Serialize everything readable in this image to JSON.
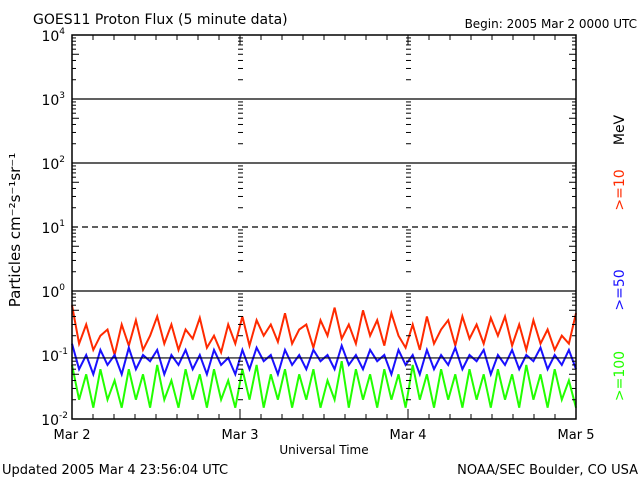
{
  "chart_data": {
    "type": "line",
    "title": "GOES11 Proton Flux (5 minute data)",
    "begin_label": "Begin: 2005 Mar 2 0000 UTC",
    "xlabel": "Universal Time",
    "ylabel": "Particles cm⁻²s⁻¹sr⁻¹",
    "yscale": "log",
    "ylim": [
      0.01,
      10000
    ],
    "y_ticks": [
      {
        "value": 10000,
        "base": "10",
        "exp": "4"
      },
      {
        "value": 1000,
        "base": "10",
        "exp": "3"
      },
      {
        "value": 100,
        "base": "10",
        "exp": "2"
      },
      {
        "value": 10,
        "base": "10",
        "exp": "1"
      },
      {
        "value": 1,
        "base": "10",
        "exp": "0"
      },
      {
        "value": 0.1,
        "base": "10",
        "exp": "-1"
      },
      {
        "value": 0.01,
        "base": "10",
        "exp": "-2"
      }
    ],
    "x_ticks": [
      "Mar 2",
      "Mar 3",
      "Mar 4",
      "Mar 5"
    ],
    "xlim_hours": [
      0,
      72
    ],
    "grid_lines": [
      1000,
      100,
      10,
      1,
      0.09
    ],
    "units_label": "MeV",
    "series": [
      {
        "name": ">=10",
        "color": "#ff2a00",
        "values": [
          0.6,
          0.15,
          0.3,
          0.12,
          0.2,
          0.25,
          0.1,
          0.3,
          0.14,
          0.35,
          0.12,
          0.2,
          0.4,
          0.15,
          0.3,
          0.12,
          0.25,
          0.18,
          0.38,
          0.13,
          0.2,
          0.11,
          0.3,
          0.15,
          0.4,
          0.14,
          0.35,
          0.2,
          0.3,
          0.16,
          0.45,
          0.15,
          0.25,
          0.3,
          0.13,
          0.35,
          0.2,
          0.55,
          0.18,
          0.3,
          0.15,
          0.5,
          0.2,
          0.35,
          0.14,
          0.45,
          0.2,
          0.13,
          0.3,
          0.12,
          0.4,
          0.15,
          0.25,
          0.35,
          0.14,
          0.4,
          0.18,
          0.3,
          0.15,
          0.38,
          0.2,
          0.4,
          0.14,
          0.3,
          0.12,
          0.35,
          0.15,
          0.25,
          0.12,
          0.2,
          0.15,
          0.45
        ]
      },
      {
        "name": ">=50",
        "color": "#1a10ff",
        "values": [
          0.15,
          0.06,
          0.1,
          0.05,
          0.12,
          0.07,
          0.1,
          0.05,
          0.13,
          0.06,
          0.1,
          0.08,
          0.12,
          0.05,
          0.1,
          0.07,
          0.12,
          0.06,
          0.1,
          0.05,
          0.12,
          0.07,
          0.09,
          0.05,
          0.12,
          0.06,
          0.13,
          0.08,
          0.1,
          0.05,
          0.12,
          0.07,
          0.1,
          0.06,
          0.12,
          0.08,
          0.1,
          0.06,
          0.14,
          0.07,
          0.1,
          0.06,
          0.12,
          0.08,
          0.1,
          0.05,
          0.12,
          0.07,
          0.1,
          0.05,
          0.12,
          0.06,
          0.1,
          0.07,
          0.13,
          0.06,
          0.1,
          0.08,
          0.12,
          0.05,
          0.1,
          0.07,
          0.12,
          0.06,
          0.1,
          0.08,
          0.13,
          0.06,
          0.1,
          0.07,
          0.12,
          0.06
        ]
      },
      {
        "name": ">=100",
        "color": "#22ff00",
        "values": [
          0.07,
          0.02,
          0.05,
          0.015,
          0.06,
          0.02,
          0.04,
          0.015,
          0.06,
          0.02,
          0.05,
          0.015,
          0.07,
          0.02,
          0.04,
          0.015,
          0.06,
          0.02,
          0.05,
          0.015,
          0.06,
          0.02,
          0.04,
          0.015,
          0.06,
          0.02,
          0.07,
          0.015,
          0.05,
          0.02,
          0.06,
          0.015,
          0.05,
          0.02,
          0.06,
          0.015,
          0.04,
          0.02,
          0.08,
          0.015,
          0.06,
          0.02,
          0.05,
          0.015,
          0.06,
          0.02,
          0.05,
          0.015,
          0.07,
          0.02,
          0.05,
          0.015,
          0.06,
          0.02,
          0.05,
          0.015,
          0.06,
          0.02,
          0.05,
          0.015,
          0.06,
          0.02,
          0.05,
          0.015,
          0.07,
          0.02,
          0.05,
          0.015,
          0.06,
          0.02,
          0.04,
          0.015
        ]
      }
    ]
  },
  "footer": {
    "updated": "Updated 2005 Mar  4 23:56:04 UTC",
    "source": "NOAA/SEC Boulder, CO USA"
  }
}
